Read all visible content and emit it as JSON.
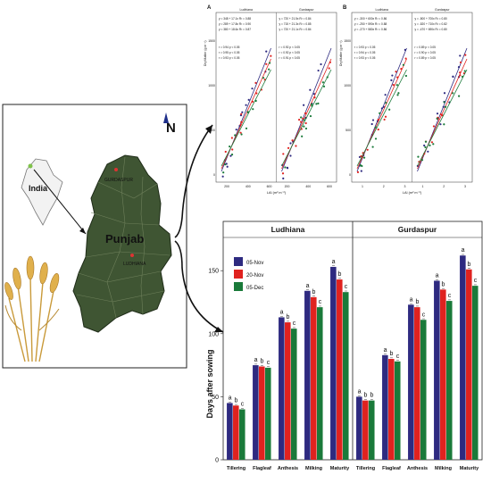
{
  "map_panel": {
    "north_label": "N",
    "country_label": "India",
    "state_label": "Punjab",
    "city_labels": [
      "GURDASPUR",
      "LUDHIANA"
    ]
  },
  "scatter_panels": {
    "A": {
      "panel_letter": "A",
      "xlabel": "LAI (m² m⁻²)",
      "ylabel": "Dry Matter (g m⁻²)",
      "facets": [
        {
          "label": "Ludhiana",
          "equations": [
            "y = 348 + 17.1x  R² = 0.88",
            "y = 289 + 17.8x  R² = 0.90",
            "y = 380 + 18.6x  R² = 0.87"
          ],
          "correlations": [
            "r = 0.94  p < 0.05",
            "r = 0.95  p < 0.05",
            "r = 0.93  p < 0.05"
          ]
        },
        {
          "label": "Gurdaspur",
          "equations": [
            "y = 720 + 21.5x  R² = 0.84",
            "y = 715 + 21.3x  R² = 0.85",
            "y = 720 + 21.1x  R² = 0.84"
          ],
          "correlations": [
            "r = 0.92  p < 0.05",
            "r = 0.92  p < 0.05",
            "r = 0.91  p < 0.05"
          ]
        }
      ],
      "xticks": [
        "200",
        "400",
        "600",
        "200",
        "400",
        "600"
      ],
      "yticks": [
        "0",
        "500",
        "1000",
        "1500"
      ]
    },
    "B": {
      "panel_letter": "B",
      "xlabel": "LAI (m² m⁻²)",
      "ylabel": "Dry Matter (g m⁻²)",
      "facets": [
        {
          "label": "Ludhiana",
          "equations": [
            "y = -300 + 600x  R² = 0.86",
            "y = -250 + 590x  R² = 0.88",
            "y = -270 + 580x  R² = 0.86"
          ],
          "correlations": [
            "r = 0.93  p < 0.05",
            "r = 0.94  p < 0.05",
            "r = 0.93  p < 0.05"
          ]
        },
        {
          "label": "Gurdaspur",
          "equations": [
            "y = -500 + 700x  R² = 0.80",
            "y = -520 + 710x  R² = 0.82",
            "y = -470 + 690x  R² = 0.80"
          ],
          "correlations": [
            "r = 0.89  p < 0.05",
            "r = 0.90  p < 0.05",
            "r = 0.89  p < 0.05"
          ]
        }
      ],
      "xticks": [
        "1",
        "2",
        "3",
        "1",
        "2",
        "3"
      ],
      "yticks": [
        "0",
        "500",
        "1000",
        "1500"
      ]
    }
  },
  "chart_data": {
    "type": "bar",
    "title": "",
    "ylabel": "Days after sowing",
    "ylim": [
      0,
      165
    ],
    "yticks": [
      0,
      50,
      100,
      150
    ],
    "categories": [
      "Tillering",
      "Flagleaf",
      "Anthesis",
      "Milking",
      "Maturity"
    ],
    "legend": [
      "05-Nov",
      "20-Nov",
      "05-Dec"
    ],
    "legend_position": "top-left",
    "colors": [
      "#2e2a80",
      "#e0221f",
      "#1a7a3a"
    ],
    "facets": [
      {
        "label": "Ludhiana",
        "series": [
          {
            "name": "05-Nov",
            "values": [
              45,
              75,
              113,
              134,
              153
            ]
          },
          {
            "name": "20-Nov",
            "values": [
              43,
              74,
              109,
              129,
              143
            ]
          },
          {
            "name": "05-Dec",
            "values": [
              40,
              73,
              104,
              121,
              133
            ]
          }
        ],
        "letters": [
          [
            "a",
            "b",
            "c"
          ],
          [
            "a",
            "b",
            "c"
          ],
          [
            "a",
            "b",
            "c"
          ],
          [
            "a",
            "b",
            "c"
          ],
          [
            "a",
            "b",
            "c"
          ]
        ]
      },
      {
        "label": "Gurdaspur",
        "series": [
          {
            "name": "05-Nov",
            "values": [
              50,
              83,
              123,
              142,
              162
            ]
          },
          {
            "name": "20-Nov",
            "values": [
              47,
              80,
              121,
              135,
              151
            ]
          },
          {
            "name": "05-Dec",
            "values": [
              47,
              78,
              111,
              126,
              138
            ]
          }
        ],
        "letters": [
          [
            "a",
            "b",
            "b"
          ],
          [
            "a",
            "b",
            "c"
          ],
          [
            "a",
            "b",
            "c"
          ],
          [
            "a",
            "b",
            "c"
          ],
          [
            "a",
            "b",
            "c"
          ]
        ]
      }
    ]
  }
}
